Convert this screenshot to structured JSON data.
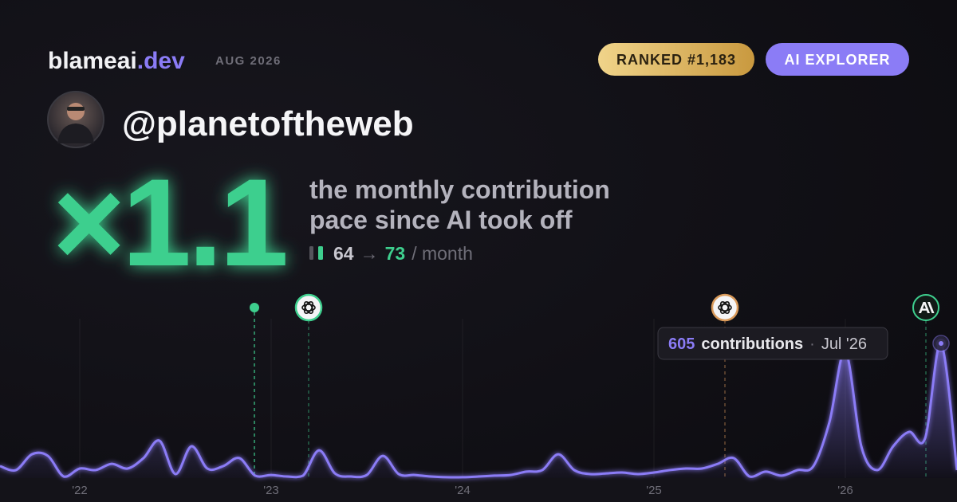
{
  "header": {
    "brand": "blameai",
    "brand_suffix": ".dev",
    "period": "AUG 2026",
    "badges": [
      "RANKED #1,183",
      "AI EXPLORER"
    ],
    "handle": "@planetoftheweb"
  },
  "stat": {
    "multiplier": "×1.1",
    "description": [
      "the monthly contribution",
      "pace since AI took off"
    ],
    "before": 64,
    "arrow": "→",
    "after": 73,
    "unit": "/ month"
  },
  "chart_data": {
    "type": "area",
    "categories": [
      null,
      null,
      null,
      null,
      null,
      "'22",
      null,
      null,
      null,
      null,
      null,
      null,
      null,
      null,
      null,
      null,
      null,
      "'23",
      null,
      null,
      null,
      null,
      null,
      null,
      null,
      null,
      null,
      null,
      null,
      "'24",
      null,
      null,
      null,
      null,
      null,
      null,
      null,
      null,
      null,
      null,
      null,
      "'25",
      null,
      null,
      null,
      null,
      null,
      null,
      null,
      null,
      null,
      null,
      null,
      "'26",
      null,
      null,
      null,
      null,
      null,
      null,
      null
    ],
    "series": [
      {
        "color": "#8b7cf6",
        "values": [
          54,
          36,
          107,
          100,
          7,
          43,
          36,
          64,
          43,
          90,
          168,
          18,
          143,
          43,
          54,
          90,
          11,
          14,
          7,
          11,
          125,
          21,
          7,
          14,
          100,
          18,
          14,
          7,
          4,
          4,
          7,
          11,
          14,
          29,
          36,
          107,
          36,
          18,
          21,
          25,
          18,
          25,
          36,
          43,
          43,
          64,
          90,
          7,
          29,
          11,
          36,
          54,
          251,
          570,
          143,
          36,
          143,
          208,
          179,
          605,
          36
        ]
      }
    ],
    "tooltip": {
      "label": "contributions",
      "separator": "·",
      "date": "Jul '26"
    }
  }
}
